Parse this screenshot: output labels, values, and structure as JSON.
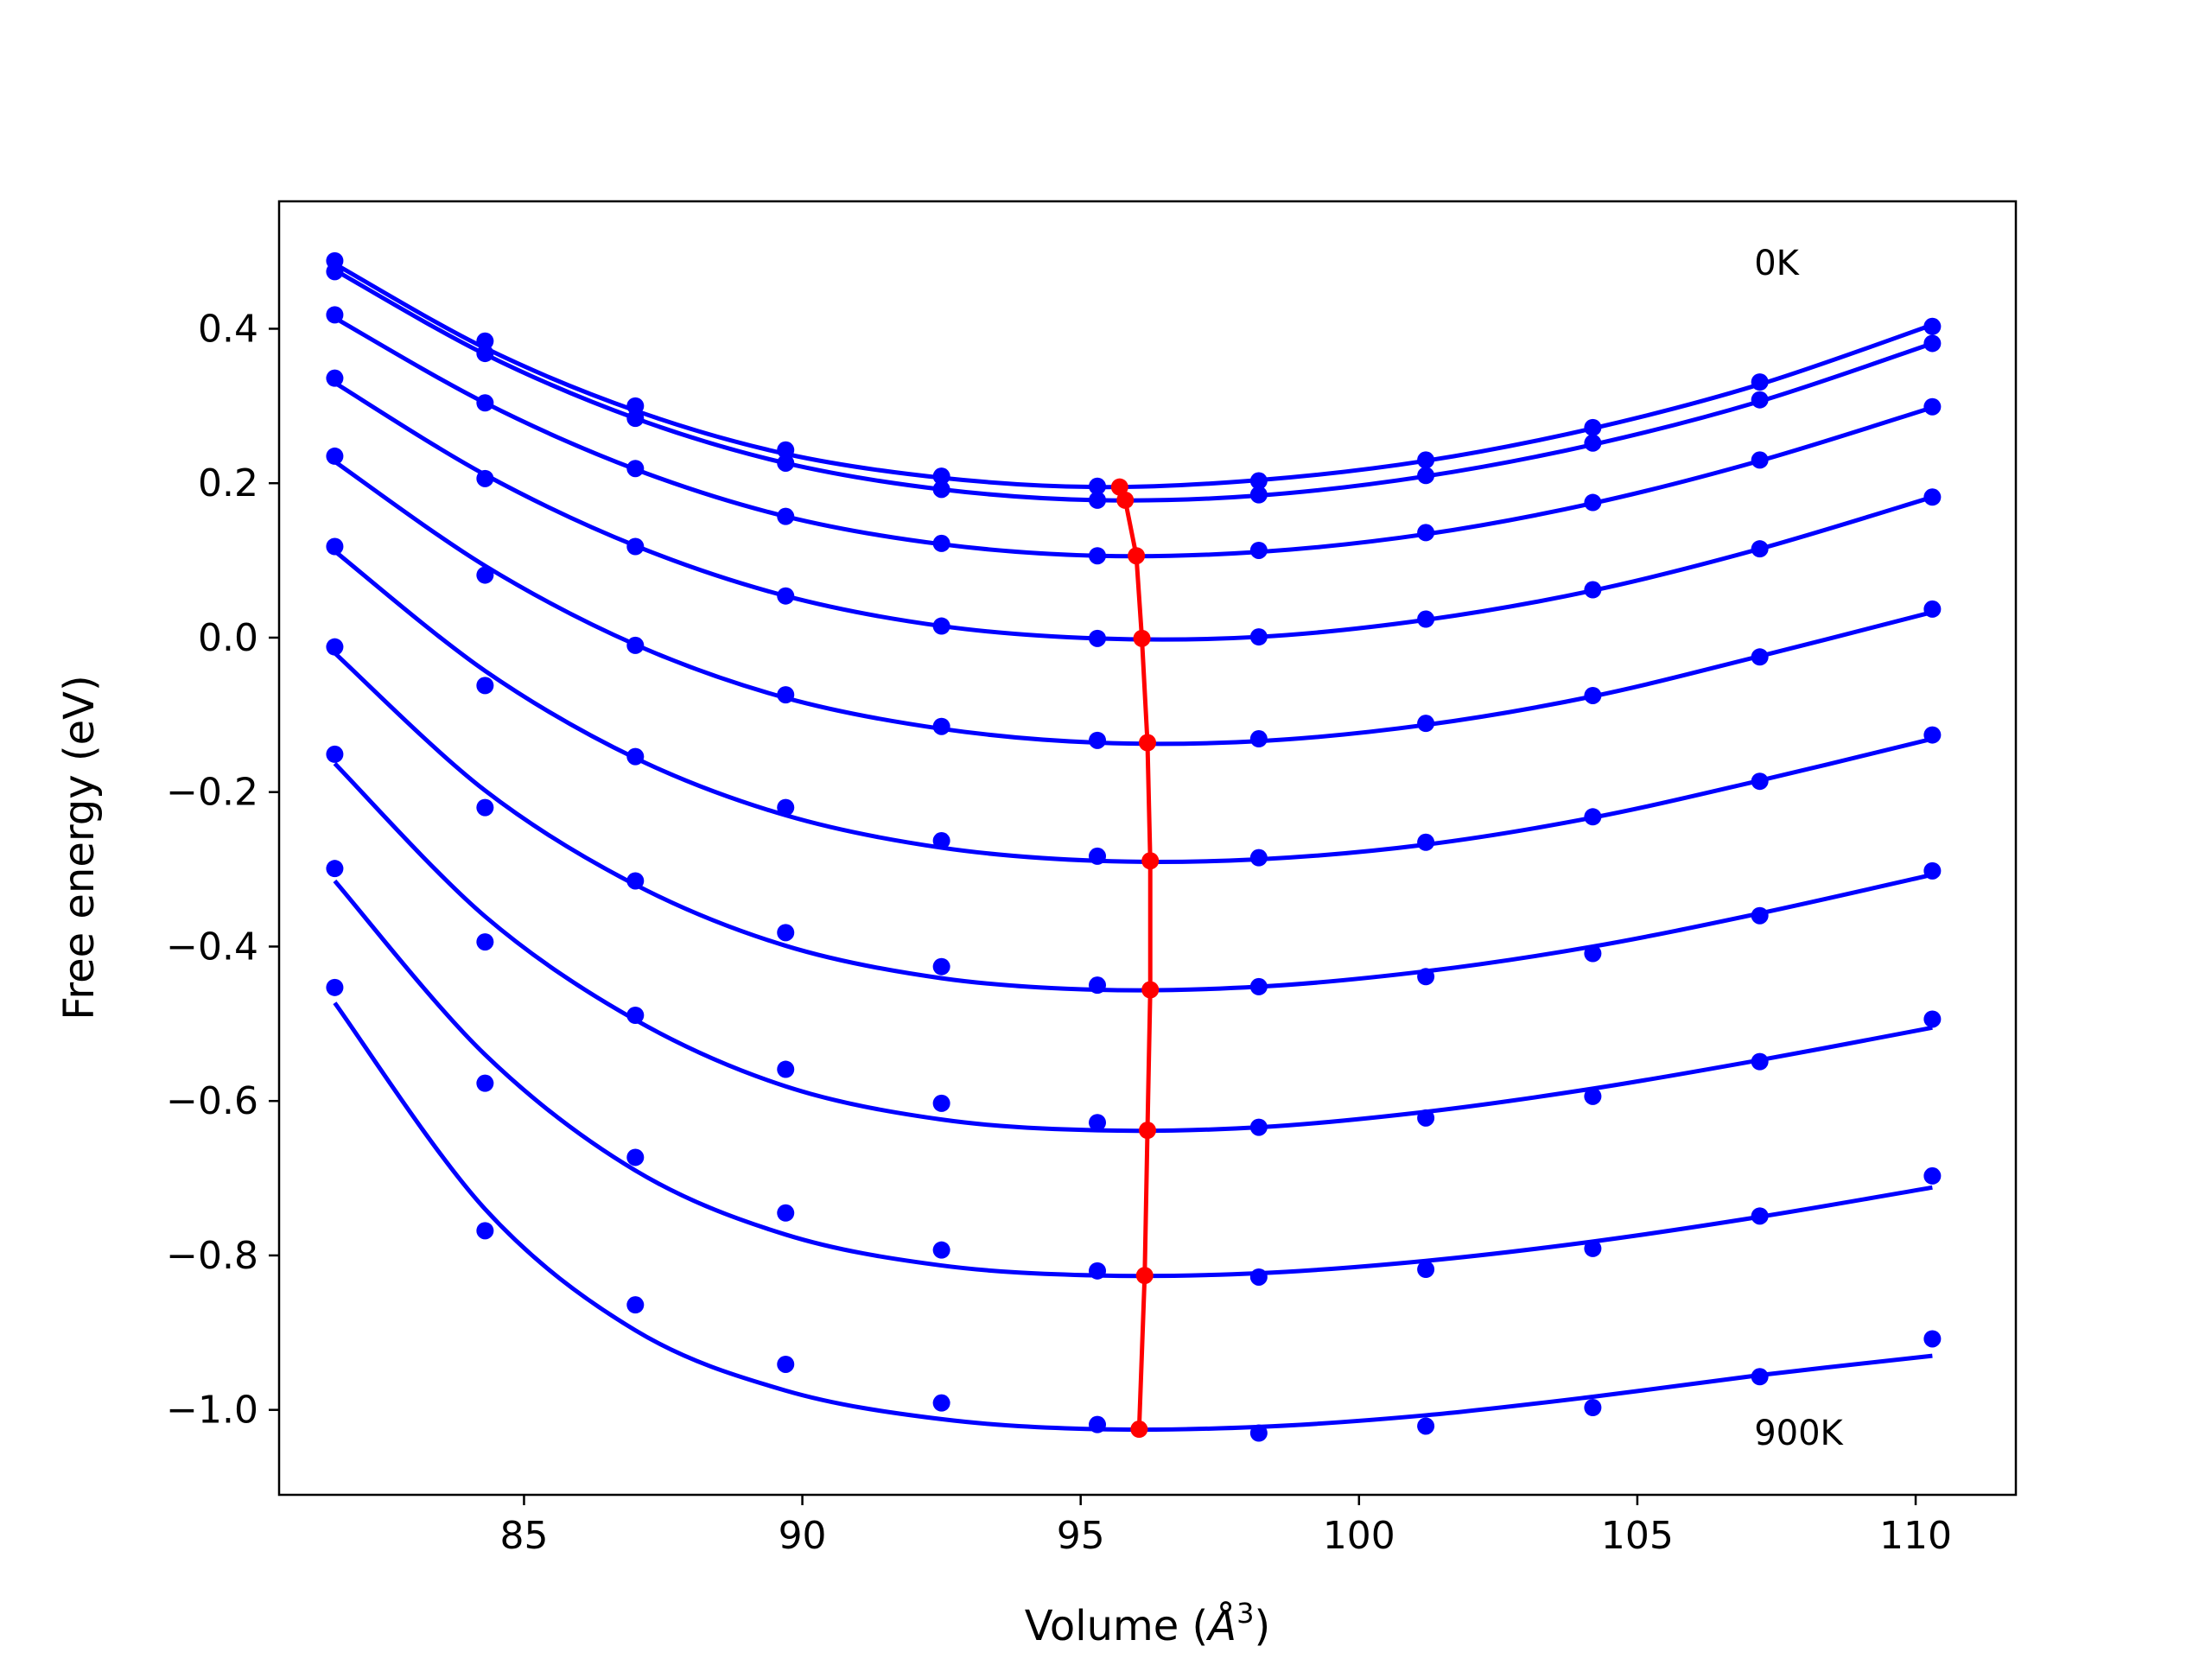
{
  "chart_data": {
    "type": "line",
    "title": "",
    "xlabel": "Volume (",
    "xlabel_symbol": "Å",
    "xlabel_exp": "3",
    "xlabel_close": ")",
    "ylabel": "Free energy (eV)",
    "xlim": [
      80.6,
      111.8
    ],
    "ylim": [
      -1.11,
      0.565
    ],
    "grid": false,
    "legend": "none",
    "x_ticks": [
      85,
      90,
      95,
      100,
      105,
      110
    ],
    "x_tick_labels": [
      "85",
      "90",
      "95",
      "100",
      "105",
      "110"
    ],
    "y_ticks": [
      0.4,
      0.2,
      0.0,
      -0.2,
      -0.4,
      -0.6,
      -0.8,
      -1.0
    ],
    "y_tick_labels": [
      "0.4",
      "0.2",
      "0.0",
      "−0.2",
      "−0.4",
      "−0.6",
      "−0.8",
      "−1.0"
    ],
    "annotations": [
      {
        "text": "0K",
        "x": 107.1,
        "y": 0.47
      },
      {
        "text": "900K",
        "x": 107.1,
        "y": -1.045
      }
    ],
    "colors": {
      "series": "#0000ff",
      "minimum_curve": "#ff0000"
    },
    "volumes": [
      81.6,
      84.3,
      87.0,
      89.7,
      92.5,
      95.3,
      98.2,
      101.2,
      104.2,
      107.2,
      110.3
    ],
    "series": [
      {
        "points": [
          0.488,
          0.384,
          0.3,
          0.243,
          0.209,
          0.196,
          0.203,
          0.23,
          0.272,
          0.331,
          0.403
        ],
        "fit": [
          0.484,
          0.375,
          0.294,
          0.238,
          0.207,
          0.195,
          0.204,
          0.229,
          0.271,
          0.328,
          0.405
        ]
      },
      {
        "points": [
          0.474,
          0.368,
          0.284,
          0.226,
          0.192,
          0.178,
          0.185,
          0.21,
          0.252,
          0.308,
          0.381
        ],
        "fit": [
          0.476,
          0.367,
          0.284,
          0.226,
          0.192,
          0.178,
          0.184,
          0.209,
          0.25,
          0.306,
          0.381
        ]
      },
      {
        "points": [
          0.418,
          0.304,
          0.219,
          0.157,
          0.122,
          0.106,
          0.113,
          0.136,
          0.175,
          0.23,
          0.299
        ],
        "fit": [
          0.414,
          0.304,
          0.218,
          0.157,
          0.121,
          0.106,
          0.111,
          0.134,
          0.174,
          0.229,
          0.298
        ]
      },
      {
        "points": [
          0.336,
          0.206,
          0.118,
          0.054,
          0.015,
          -0.001,
          0.001,
          0.024,
          0.062,
          0.115,
          0.182
        ],
        "fit": [
          0.33,
          0.211,
          0.119,
          0.054,
          0.015,
          -0.001,
          0.001,
          0.023,
          0.061,
          0.115,
          0.182
        ]
      },
      {
        "points": [
          0.235,
          0.081,
          -0.01,
          -0.074,
          -0.115,
          -0.133,
          -0.131,
          -0.111,
          -0.075,
          -0.025,
          0.037
        ],
        "fit": [
          0.228,
          0.093,
          -0.009,
          -0.078,
          -0.118,
          -0.136,
          -0.134,
          -0.113,
          -0.076,
          -0.024,
          0.033
        ]
      },
      {
        "points": [
          0.118,
          -0.062,
          -0.154,
          -0.22,
          -0.263,
          -0.283,
          -0.285,
          -0.265,
          -0.232,
          -0.186,
          -0.126
        ],
        "fit": [
          0.112,
          -0.043,
          -0.156,
          -0.23,
          -0.272,
          -0.289,
          -0.287,
          -0.268,
          -0.233,
          -0.185,
          -0.131
        ]
      },
      {
        "points": [
          -0.012,
          -0.22,
          -0.315,
          -0.382,
          -0.426,
          -0.45,
          -0.452,
          -0.439,
          -0.409,
          -0.36,
          -0.302
        ],
        "fit": [
          -0.02,
          -0.198,
          -0.32,
          -0.399,
          -0.441,
          -0.456,
          -0.452,
          -0.432,
          -0.4,
          -0.357,
          -0.307
        ]
      },
      {
        "points": [
          -0.151,
          -0.394,
          -0.489,
          -0.559,
          -0.603,
          -0.628,
          -0.634,
          -0.622,
          -0.594,
          -0.549,
          -0.494
        ],
        "fit": [
          -0.163,
          -0.361,
          -0.495,
          -0.581,
          -0.624,
          -0.638,
          -0.634,
          -0.614,
          -0.584,
          -0.547,
          -0.505
        ]
      },
      {
        "points": [
          -0.299,
          -0.577,
          -0.673,
          -0.745,
          -0.793,
          -0.82,
          -0.828,
          -0.818,
          -0.791,
          -0.749,
          -0.697
        ],
        "fit": [
          -0.315,
          -0.54,
          -0.69,
          -0.773,
          -0.813,
          -0.826,
          -0.823,
          -0.807,
          -0.782,
          -0.75,
          -0.712
        ]
      },
      {
        "points": [
          -0.453,
          -0.768,
          -0.864,
          -0.941,
          -0.991,
          -1.019,
          -1.03,
          -1.021,
          -0.997,
          -0.957,
          -0.908
        ],
        "fit": [
          -0.473,
          -0.74,
          -0.897,
          -0.975,
          -1.012,
          -1.025,
          -1.022,
          -1.007,
          -0.983,
          -0.955,
          -0.93
        ]
      }
    ],
    "minimum_curve": [
      {
        "x": 95.7,
        "y": 0.195
      },
      {
        "x": 95.8,
        "y": 0.178
      },
      {
        "x": 96.0,
        "y": 0.106
      },
      {
        "x": 96.1,
        "y": -0.001
      },
      {
        "x": 96.2,
        "y": -0.136
      },
      {
        "x": 96.25,
        "y": -0.289
      },
      {
        "x": 96.25,
        "y": -0.456
      },
      {
        "x": 96.2,
        "y": -0.638
      },
      {
        "x": 96.15,
        "y": -0.826
      },
      {
        "x": 96.05,
        "y": -1.025
      }
    ]
  }
}
